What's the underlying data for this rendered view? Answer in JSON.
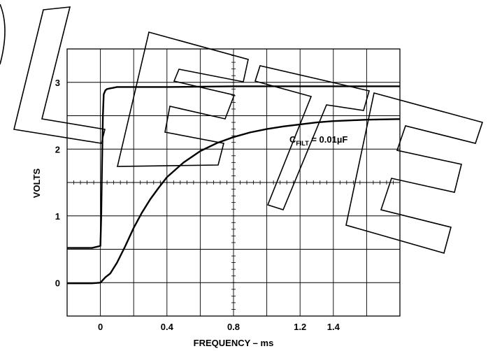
{
  "chart_data": {
    "type": "line",
    "xlabel": "FREQUENCY – ms",
    "ylabel": "VOLTS",
    "xlim": [
      -0.2,
      1.8
    ],
    "ylim": [
      -0.5,
      3.5
    ],
    "x_ticks": [
      0,
      0.4,
      0.8,
      1.2,
      1.4
    ],
    "x_tick_labels": [
      "0",
      "0.4",
      "0.8",
      "1.2",
      "1.4"
    ],
    "y_ticks": [
      0,
      1,
      2,
      3
    ],
    "y_tick_labels": [
      "0",
      "1",
      "2",
      "3"
    ],
    "grid": true,
    "series": [
      {
        "x": [
          -0.2,
          -0.05,
          0.0,
          0.005,
          0.01,
          0.015,
          0.02,
          0.03,
          0.04,
          0.06,
          0.08,
          0.1,
          0.2,
          0.4,
          0.8,
          1.2,
          1.8
        ],
        "y": [
          0.52,
          0.52,
          0.55,
          1.0,
          1.8,
          2.5,
          2.82,
          2.88,
          2.9,
          2.91,
          2.92,
          2.93,
          2.93,
          2.93,
          2.94,
          2.94,
          2.94
        ]
      },
      {
        "x": [
          -0.2,
          -0.05,
          0.0,
          0.03,
          0.06,
          0.1,
          0.15,
          0.2,
          0.25,
          0.3,
          0.35,
          0.4,
          0.5,
          0.6,
          0.7,
          0.8,
          0.9,
          1.0,
          1.1,
          1.2,
          1.3,
          1.4,
          1.5,
          1.6,
          1.8
        ],
        "y": [
          -0.01,
          -0.01,
          0.0,
          0.08,
          0.14,
          0.3,
          0.55,
          0.82,
          1.05,
          1.25,
          1.42,
          1.58,
          1.8,
          1.97,
          2.09,
          2.18,
          2.25,
          2.3,
          2.34,
          2.37,
          2.4,
          2.42,
          2.43,
          2.44,
          2.45
        ]
      }
    ],
    "annotations": [
      {
        "text": "C",
        "subscript": "FILT",
        "suffix": " = 0.01µF"
      }
    ]
  },
  "watermark": {
    "text": "OBSOLETE"
  }
}
